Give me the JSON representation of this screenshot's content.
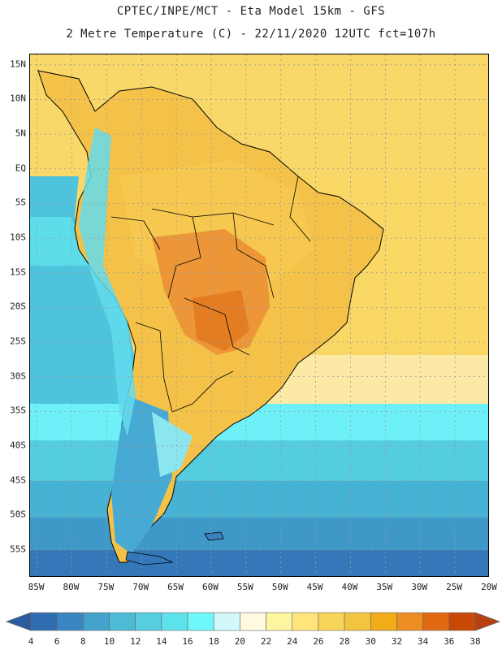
{
  "title": {
    "line1": "CPTEC/INPE/MCT -  Eta Model 15km - GFS",
    "line2": "2 Metre Temperature (C) - 22/11/2020 12UTC fct=107h"
  },
  "map": {
    "lon_range": [
      -86,
      -20
    ],
    "lat_range": [
      -59,
      16.5
    ],
    "y_ticks": [
      {
        "lat": 15,
        "label": "15N"
      },
      {
        "lat": 10,
        "label": "10N"
      },
      {
        "lat": 5,
        "label": "5N"
      },
      {
        "lat": 0,
        "label": "EQ"
      },
      {
        "lat": -5,
        "label": "5S"
      },
      {
        "lat": -10,
        "label": "10S"
      },
      {
        "lat": -15,
        "label": "15S"
      },
      {
        "lat": -20,
        "label": "20S"
      },
      {
        "lat": -25,
        "label": "25S"
      },
      {
        "lat": -30,
        "label": "30S"
      },
      {
        "lat": -35,
        "label": "35S"
      },
      {
        "lat": -40,
        "label": "40S"
      },
      {
        "lat": -45,
        "label": "45S"
      },
      {
        "lat": -50,
        "label": "50S"
      },
      {
        "lat": -55,
        "label": "55S"
      }
    ],
    "x_ticks": [
      {
        "lon": -85,
        "label": "85W"
      },
      {
        "lon": -80,
        "label": "80W"
      },
      {
        "lon": -75,
        "label": "75W"
      },
      {
        "lon": -70,
        "label": "70W"
      },
      {
        "lon": -65,
        "label": "65W"
      },
      {
        "lon": -60,
        "label": "60W"
      },
      {
        "lon": -55,
        "label": "55W"
      },
      {
        "lon": -50,
        "label": "50W"
      },
      {
        "lon": -45,
        "label": "45W"
      },
      {
        "lon": -40,
        "label": "40W"
      },
      {
        "lon": -35,
        "label": "35W"
      },
      {
        "lon": -30,
        "label": "30W"
      },
      {
        "lon": -25,
        "label": "25W"
      },
      {
        "lon": -20,
        "label": "20W"
      }
    ],
    "colorbar": {
      "labels": [
        "4",
        "6",
        "8",
        "10",
        "12",
        "14",
        "16",
        "18",
        "20",
        "22",
        "24",
        "26",
        "28",
        "30",
        "32",
        "34",
        "36",
        "38"
      ],
      "colors": [
        "#2f6db0",
        "#3a86c2",
        "#43a3cc",
        "#4ebbd6",
        "#56cde0",
        "#5de2ec",
        "#6ff8fb",
        "#d2f8fc",
        "#fffae0",
        "#fff5a0",
        "#ffe57a",
        "#f8d458",
        "#f3c440",
        "#f1ac18",
        "#ec8e22",
        "#e06810",
        "#c84806"
      ],
      "low_color": "#2a5ca0",
      "high_color": "#b8400c"
    },
    "regions": [
      {
        "name": "atlantic-north",
        "color": "#f7d868"
      },
      {
        "name": "amazon-warm",
        "color": "#f6c850"
      },
      {
        "name": "central-hot",
        "color": "#ec9638"
      },
      {
        "name": "south-cool",
        "color": "#46aad4"
      }
    ]
  }
}
